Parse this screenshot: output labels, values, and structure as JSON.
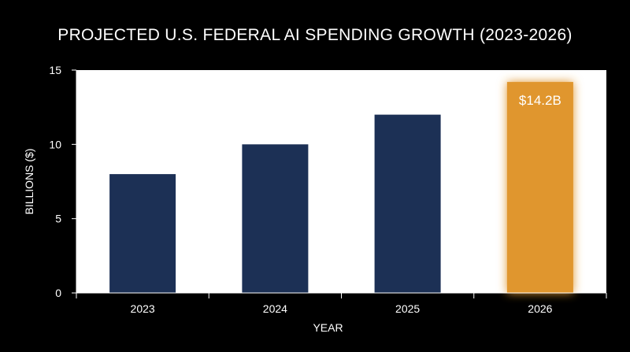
{
  "colors": {
    "background": "#000000",
    "plot_area": "#ffffff",
    "bar": "#1c3055",
    "highlight_bar": "#e0962e",
    "text": "#ffffff"
  },
  "chart_data": {
    "type": "bar",
    "title": "PROJECTED U.S. FEDERAL AI SPENDING GROWTH (2023-2026)",
    "xlabel": "YEAR",
    "ylabel": "BILLIONS ($)",
    "categories": [
      "2023",
      "2024",
      "2025",
      "2026"
    ],
    "values": [
      8.0,
      10.0,
      12.0,
      14.2
    ],
    "ylim": [
      0,
      15
    ],
    "yticks": [
      0,
      5,
      10,
      15
    ],
    "highlight_index": 3,
    "data_labels": [
      {
        "index": 3,
        "text": "$14.2B"
      }
    ],
    "grid": false,
    "legend": "none"
  }
}
